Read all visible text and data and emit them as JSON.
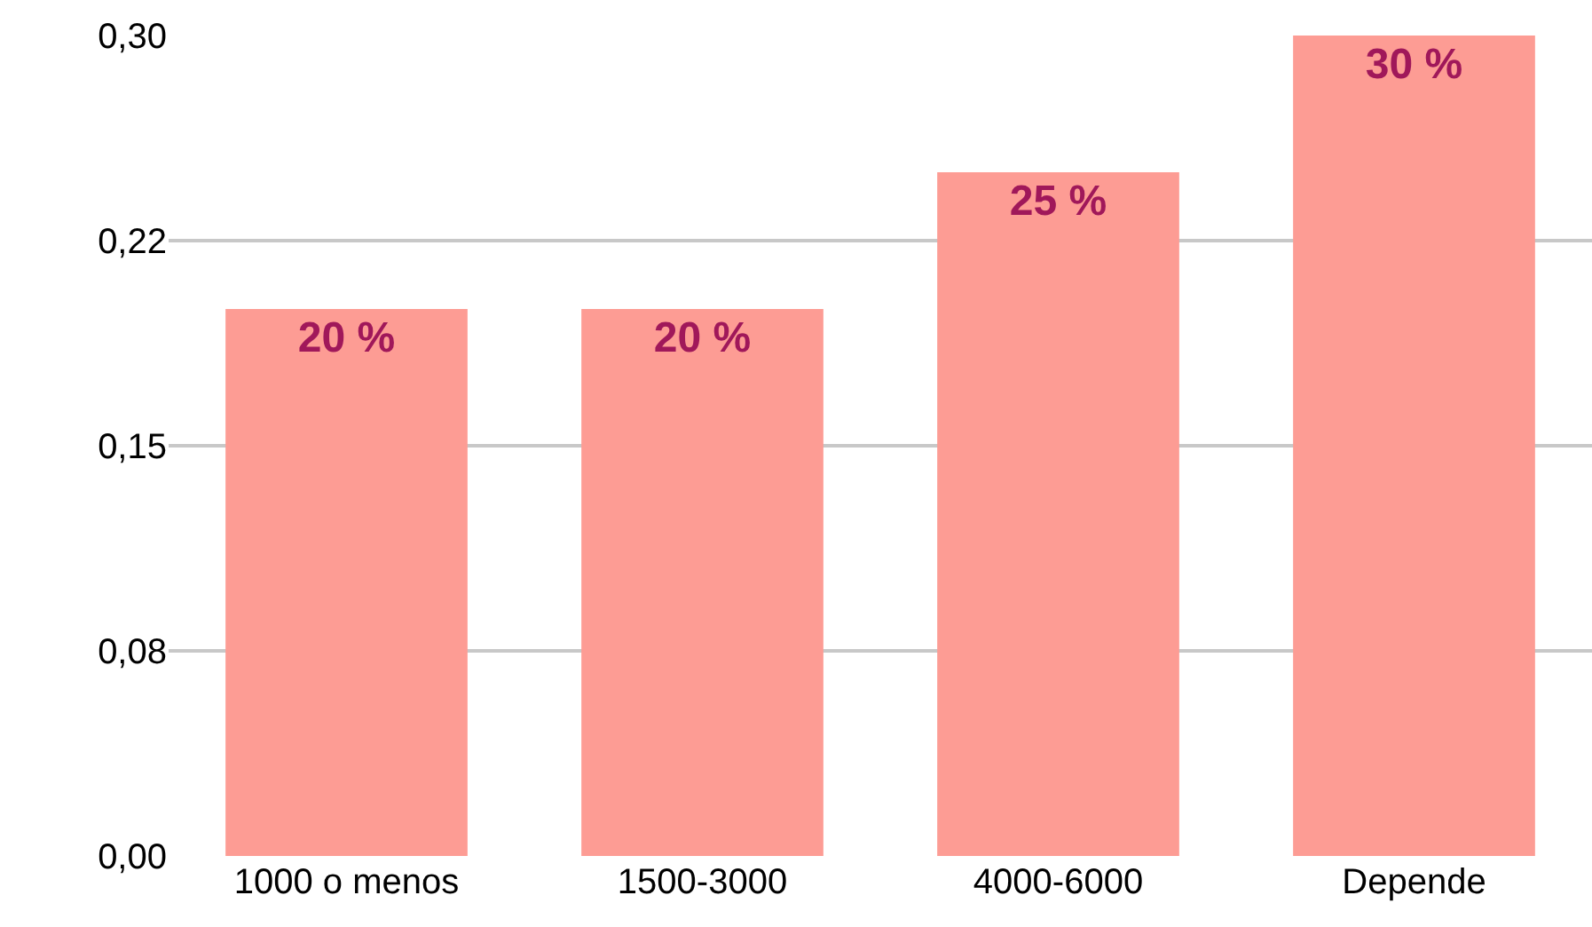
{
  "chart_data": {
    "type": "bar",
    "categories": [
      "1000 o menos",
      "1500-3000",
      "4000-6000",
      "Depende"
    ],
    "values": [
      0.2,
      0.2,
      0.25,
      0.3
    ],
    "value_labels": [
      "20 %",
      "20 %",
      "25 %",
      "30 %"
    ],
    "color": "#fd9c94",
    "ylim": [
      0,
      0.3
    ],
    "yticks": [
      {
        "value": 0,
        "label": "0,00"
      },
      {
        "value": 0.075,
        "label": "0,08"
      },
      {
        "value": 0.15,
        "label": "0,15"
      },
      {
        "value": 0.225,
        "label": "0,22"
      },
      {
        "value": 0.3,
        "label": "0,30"
      }
    ],
    "grid": "y"
  }
}
